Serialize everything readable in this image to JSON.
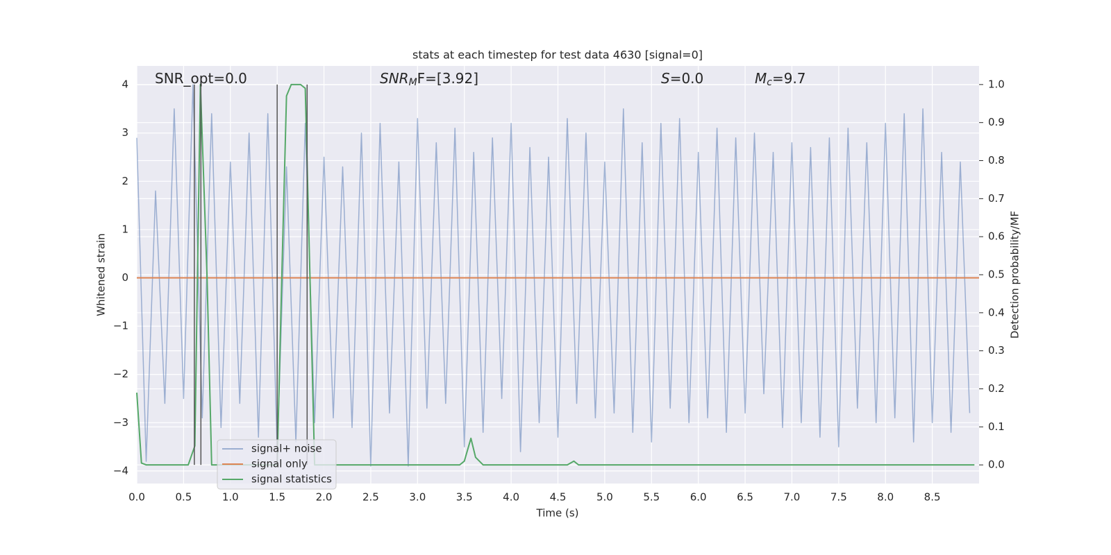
{
  "chart_data": {
    "type": "line",
    "title": "stats at each timestep for test data 4630 [signal=0]",
    "xlabel": "Time (s)",
    "ylabel": "Whitened strain",
    "y2label": "Detection probability/MF",
    "xlim": [
      0,
      9.0
    ],
    "ylim": [
      -4.26,
      4.39
    ],
    "y2lim": [
      -0.049,
      1.049
    ],
    "xticks": [
      {
        "value": 0,
        "label": "0.0"
      },
      0.5,
      {
        "value": 1,
        "label": "1.0"
      },
      1.5,
      {
        "value": 2,
        "label": "2.0"
      },
      2.5,
      {
        "value": 3,
        "label": "3.0"
      },
      3.5,
      {
        "value": 4,
        "label": "4.0"
      },
      4.5,
      {
        "value": 5,
        "label": "5.0"
      },
      5.5,
      {
        "value": 6,
        "label": "6.0"
      },
      6.5,
      {
        "value": 7,
        "label": "7.0"
      },
      7.5,
      {
        "value": 8,
        "label": "8.0"
      },
      8.5
    ],
    "yticks": [
      {
        "value": -4,
        "label": "−4"
      },
      {
        "value": -3,
        "label": "−3"
      },
      {
        "value": -2,
        "label": "−2"
      },
      {
        "value": -1,
        "label": "−1"
      },
      0,
      1,
      2,
      3,
      4
    ],
    "y2ticks": [
      {
        "value": 0,
        "label": "0.0"
      },
      0.1,
      0.2,
      0.3,
      0.4,
      0.5,
      0.6,
      0.7,
      0.8,
      0.9,
      {
        "value": 1,
        "label": "1.0"
      }
    ],
    "grid": true,
    "legend": "lower left",
    "series": [
      {
        "name": "signal+ noise",
        "color": "#4c72b0",
        "alpha": 0.5,
        "x": [
          0.0,
          0.1,
          0.2,
          0.3,
          0.4,
          0.5,
          0.6,
          0.7,
          0.8,
          0.9,
          1.0,
          1.1,
          1.2,
          1.3,
          1.4,
          1.5,
          1.6,
          1.7,
          1.8,
          1.9,
          2.0,
          2.1,
          2.2,
          2.3,
          2.4,
          2.5,
          2.6,
          2.7,
          2.8,
          2.9,
          3.0,
          3.1,
          3.2,
          3.3,
          3.4,
          3.5,
          3.6,
          3.7,
          3.8,
          3.9,
          4.0,
          4.1,
          4.2,
          4.3,
          4.4,
          4.5,
          4.6,
          4.7,
          4.8,
          4.9,
          5.0,
          5.1,
          5.2,
          5.3,
          5.4,
          5.5,
          5.6,
          5.7,
          5.8,
          5.9,
          6.0,
          6.1,
          6.2,
          6.3,
          6.4,
          6.5,
          6.6,
          6.7,
          6.8,
          6.9,
          7.0,
          7.1,
          7.2,
          7.3,
          7.4,
          7.5,
          7.6,
          7.7,
          7.8,
          7.9,
          8.0,
          8.1,
          8.2,
          8.3,
          8.4,
          8.5,
          8.6,
          8.7,
          8.8,
          8.9
        ],
        "values": [
          2.9,
          -3.8,
          1.8,
          -2.6,
          3.5,
          -2.5,
          4.0,
          -2.9,
          3.4,
          -3.1,
          2.4,
          -2.6,
          3.0,
          -3.3,
          3.4,
          -3.6,
          2.3,
          -3.4,
          3.2,
          -3.0,
          2.5,
          -2.9,
          2.3,
          -3.1,
          3.0,
          -3.9,
          3.2,
          -2.8,
          2.4,
          -3.9,
          3.3,
          -2.7,
          2.8,
          -2.6,
          3.1,
          -3.5,
          2.6,
          -3.2,
          2.9,
          -2.5,
          3.2,
          -3.6,
          2.7,
          -3.0,
          2.5,
          -3.3,
          3.3,
          -2.6,
          3.0,
          -2.9,
          2.4,
          -2.8,
          3.5,
          -3.2,
          2.8,
          -3.4,
          3.2,
          -2.7,
          3.3,
          -3.0,
          2.6,
          -2.9,
          3.1,
          -3.2,
          2.9,
          -2.8,
          3.0,
          -2.4,
          2.6,
          -3.1,
          2.8,
          -3.0,
          2.7,
          -3.3,
          2.9,
          -3.5,
          3.1,
          -2.7,
          2.8,
          -3.0,
          3.2,
          -2.9,
          3.4,
          -3.4,
          3.5,
          -3.0,
          2.6,
          -3.2,
          2.4,
          -2.8
        ]
      },
      {
        "name": "signal only",
        "color": "#dd8452",
        "x": [
          0,
          9.0
        ],
        "values": [
          0,
          0
        ]
      },
      {
        "name": "signal statistics",
        "color": "#55a868",
        "axis": "y2",
        "x": [
          0,
          0.05,
          0.1,
          0.55,
          0.62,
          0.68,
          0.75,
          0.8,
          1.5,
          1.55,
          1.6,
          1.65,
          1.75,
          1.8,
          1.85,
          1.9,
          3.45,
          3.5,
          3.57,
          3.62,
          3.7,
          4.6,
          4.67,
          4.72,
          8.95
        ],
        "values": [
          0.19,
          0.005,
          0,
          0,
          0.05,
          1.0,
          0.5,
          0,
          0,
          0.5,
          0.97,
          1.0,
          1.0,
          0.99,
          0.5,
          0,
          0,
          0.01,
          0.07,
          0.02,
          0,
          0,
          0.01,
          0,
          0
        ]
      }
    ],
    "vlines": {
      "x": [
        0.615,
        0.685,
        1.5,
        1.82
      ],
      "ymin": 0,
      "ymax": 1,
      "axis": "y2",
      "color": "#555555"
    },
    "annotations": [
      {
        "text": "SNR_opt=0.0"
      },
      {
        "text": "SNR",
        "sub": "M",
        "tail": "F=[3.92]",
        "italic": true
      },
      {
        "text": "S",
        "tail": "=0.0",
        "italic": true
      },
      {
        "text": "M",
        "sub": "c",
        "tail": "=9.7",
        "italic": true
      }
    ]
  }
}
